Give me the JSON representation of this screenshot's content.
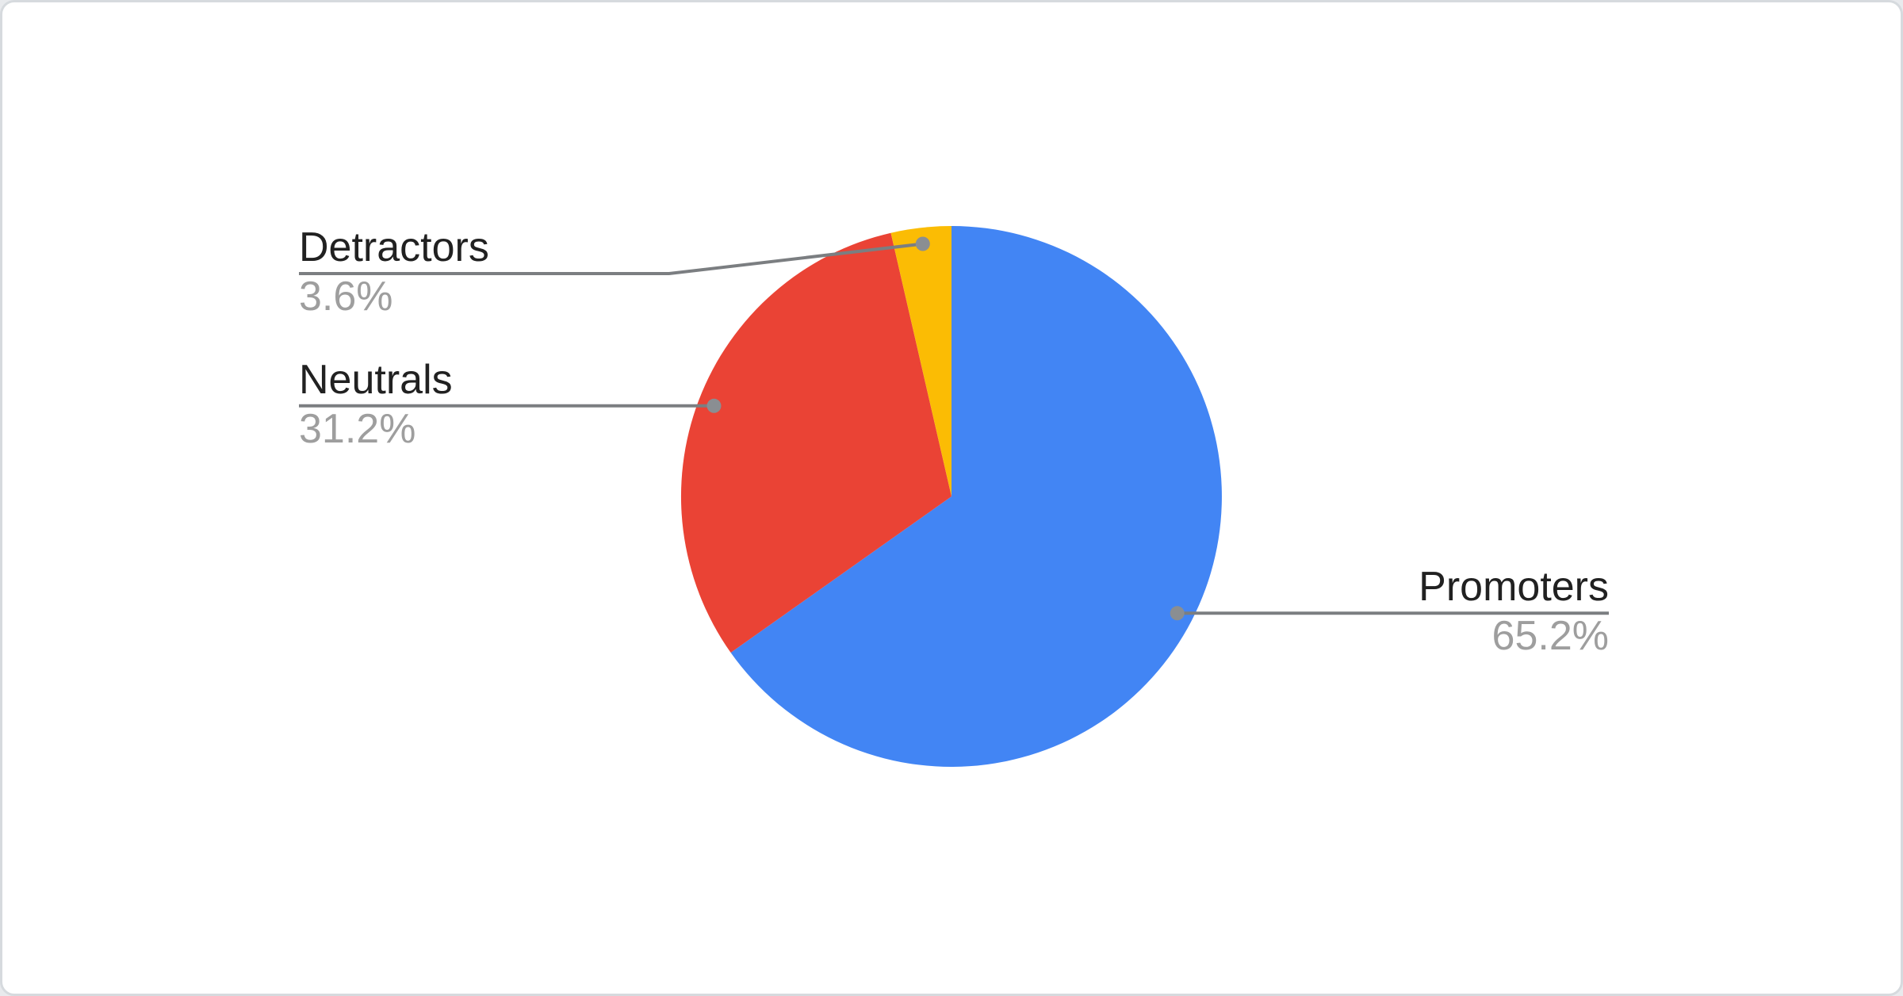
{
  "chart_data": {
    "type": "pie",
    "title": "",
    "start_angle_deg": 0,
    "direction": "clockwise",
    "labels_style": "callouts-with-leader-lines",
    "slices": [
      {
        "label": "Promoters",
        "value": 65.2,
        "pct_label": "65.2%",
        "color": "#4285F4"
      },
      {
        "label": "Neutrals",
        "value": 31.2,
        "pct_label": "31.2%",
        "color": "#EA4335"
      },
      {
        "label": "Detractors",
        "value": 3.6,
        "pct_label": "3.6%",
        "color": "#FBBC04"
      }
    ]
  },
  "colors": {
    "slice_label_text": "#212121",
    "percent_text": "#9e9e9e",
    "leader_line": "#7b7e81",
    "leader_dot": "#8a8e92",
    "card_background": "#ffffff",
    "card_border": "#d6dade",
    "page_background": "#e8eaed"
  }
}
